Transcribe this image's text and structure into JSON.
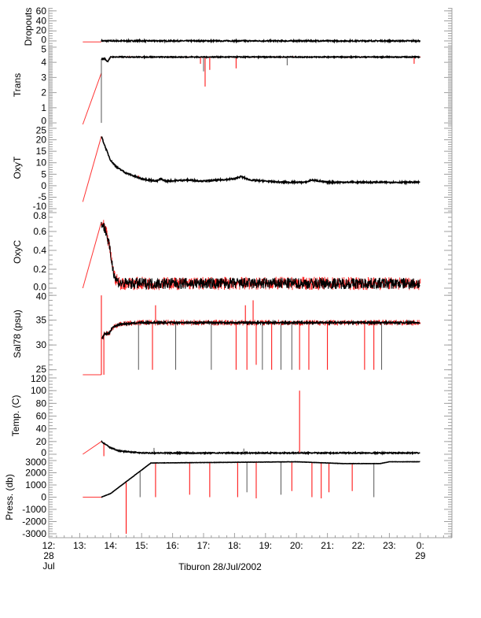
{
  "chart_data": {
    "type": "line",
    "title": "Tiburon 28/Jul/2002",
    "xlabel": "Tiburon 28/Jul/2002",
    "xlim": [
      12.0,
      25.02
    ],
    "x_ticks": [
      {
        "t": 12,
        "lines": [
          "12:",
          "28",
          "Jul"
        ]
      },
      {
        "t": 13,
        "lines": [
          "13:"
        ]
      },
      {
        "t": 14,
        "lines": [
          "14:"
        ]
      },
      {
        "t": 15,
        "lines": [
          "15:"
        ]
      },
      {
        "t": 16,
        "lines": [
          "16:"
        ]
      },
      {
        "t": 17,
        "lines": [
          "17:"
        ]
      },
      {
        "t": 18,
        "lines": [
          "18:"
        ]
      },
      {
        "t": 19,
        "lines": [
          "19:"
        ]
      },
      {
        "t": 20,
        "lines": [
          "20:"
        ]
      },
      {
        "t": 21,
        "lines": [
          "21:"
        ]
      },
      {
        "t": 22,
        "lines": [
          "22:"
        ]
      },
      {
        "t": 23,
        "lines": [
          "23:"
        ]
      },
      {
        "t": 24,
        "lines": [
          "0:",
          "29"
        ]
      }
    ],
    "colors": {
      "good": "#000000",
      "flagged": "#ff0000",
      "axis": "#a0a0a0"
    },
    "panels": [
      {
        "ylabel": "Dropouts",
        "ylim": [
          -9.5,
          66
        ],
        "ticks": [
          0,
          20,
          40,
          60
        ],
        "tick_labels": [
          "0",
          "20",
          "40",
          "60"
        ],
        "minor": 5,
        "red_line": [
          [
            13.1,
            -2
          ],
          [
            13.7,
            -2
          ]
        ],
        "black": [
          [
            13.7,
            0
          ],
          [
            24.0,
            0
          ]
        ],
        "noise": 1.2,
        "red_noise": 0,
        "spikes": []
      },
      {
        "ylabel": "Trans",
        "ylim": [
          -0.1,
          5.1
        ],
        "ticks": [
          0,
          1,
          2,
          3,
          4,
          5
        ],
        "tick_labels": [
          "0",
          "1",
          "2",
          "3",
          "4",
          "5"
        ],
        "minor": 0.1,
        "red_line": [
          [
            13.1,
            -0.1
          ],
          [
            13.7,
            3.3
          ]
        ],
        "black": [
          [
            13.7,
            4.2
          ],
          [
            13.8,
            4.25
          ],
          [
            13.9,
            4.05
          ],
          [
            14.0,
            4.35
          ],
          [
            24.0,
            4.35
          ]
        ],
        "noise": 0.03,
        "red_noise": 0.05,
        "spikes": [
          [
            13.7,
            0.0,
            "k"
          ],
          [
            16.9,
            3.9,
            "r"
          ],
          [
            17.0,
            3.4,
            "k"
          ],
          [
            17.05,
            2.4,
            "r"
          ],
          [
            17.2,
            3.5,
            "r"
          ],
          [
            18.05,
            3.6,
            "r"
          ],
          [
            19.7,
            3.8,
            "k"
          ],
          [
            23.8,
            3.9,
            "r"
          ]
        ]
      },
      {
        "ylabel": "OxyT",
        "ylim": [
          -11,
          26.7
        ],
        "ticks": [
          -10,
          -5,
          0,
          5,
          10,
          15,
          20,
          25
        ],
        "tick_labels": [
          "-10",
          "-5",
          "0",
          "5",
          "10",
          "15",
          "20",
          "25"
        ],
        "minor": 1,
        "red_line": [
          [
            13.1,
            -7
          ],
          [
            13.7,
            21.5
          ]
        ],
        "black": [
          [
            13.7,
            21.5
          ],
          [
            13.85,
            16
          ],
          [
            14.0,
            11
          ],
          [
            14.2,
            8
          ],
          [
            14.5,
            5.5
          ],
          [
            15.0,
            3
          ],
          [
            15.5,
            2
          ],
          [
            15.6,
            3
          ],
          [
            15.8,
            2
          ],
          [
            16.5,
            2.5
          ],
          [
            17.0,
            2
          ],
          [
            17.5,
            2.5
          ],
          [
            18.0,
            3
          ],
          [
            18.2,
            4
          ],
          [
            18.5,
            2.5
          ],
          [
            19.0,
            2
          ],
          [
            19.5,
            1.5
          ],
          [
            20.3,
            1.5
          ],
          [
            20.5,
            2.5
          ],
          [
            21.0,
            1.5
          ],
          [
            24.0,
            1.5
          ]
        ],
        "noise": 0.3,
        "red_noise": 0,
        "spikes": [
          [
            14.9,
            4.5,
            "r"
          ]
        ]
      },
      {
        "ylabel": "OxyC",
        "ylim": [
          -0.05,
          0.817
        ],
        "ticks": [
          0,
          0.2,
          0.4,
          0.6,
          0.8
        ],
        "tick_labels": [
          "0.0",
          "0.2",
          "0.4",
          "0.6",
          "0.8"
        ],
        "minor": 0.05,
        "red_line": [
          [
            13.1,
            0.0
          ],
          [
            13.7,
            0.7
          ]
        ],
        "black": [
          [
            13.7,
            0.7
          ],
          [
            13.85,
            0.6
          ],
          [
            13.95,
            0.45
          ],
          [
            14.05,
            0.25
          ],
          [
            14.15,
            0.1
          ],
          [
            14.3,
            0.05
          ],
          [
            24.0,
            0.05
          ]
        ],
        "noise": 0.06,
        "red_noise": 0.07,
        "spikes": []
      },
      {
        "ylabel": "Sal78 (psu)",
        "ylim": [
          24.0,
          40.5
        ],
        "ticks": [
          25,
          30,
          35,
          40
        ],
        "tick_labels": [
          "25",
          "30",
          "35",
          "40"
        ],
        "minor": 1,
        "red_line": [
          [
            13.1,
            24.0
          ],
          [
            13.7,
            24.0
          ]
        ],
        "black": [
          [
            13.72,
            31.2
          ],
          [
            13.8,
            32.2
          ],
          [
            13.95,
            32.3
          ],
          [
            14.05,
            33.5
          ],
          [
            14.3,
            34.2
          ],
          [
            15.0,
            34.5
          ],
          [
            24.0,
            34.5
          ]
        ],
        "noise": 0.15,
        "red_noise": 0.6,
        "spikes": [
          [
            13.7,
            40,
            "r"
          ],
          [
            13.78,
            24,
            "r"
          ],
          [
            14.9,
            25,
            "k"
          ],
          [
            15.35,
            25,
            "r"
          ],
          [
            15.45,
            38,
            "r"
          ],
          [
            16.1,
            25,
            "k"
          ],
          [
            17.25,
            25,
            "k"
          ],
          [
            18.05,
            25,
            "r"
          ],
          [
            18.35,
            38,
            "r"
          ],
          [
            18.4,
            25,
            "r"
          ],
          [
            18.6,
            39,
            "r"
          ],
          [
            18.7,
            26,
            "r"
          ],
          [
            18.9,
            25,
            "k"
          ],
          [
            19.2,
            25,
            "r"
          ],
          [
            19.5,
            25,
            "k"
          ],
          [
            19.85,
            25,
            "k"
          ],
          [
            20.1,
            25,
            "r"
          ],
          [
            20.4,
            25,
            "r"
          ],
          [
            21.0,
            25,
            "r"
          ],
          [
            22.2,
            25,
            "r"
          ],
          [
            22.5,
            25,
            "r"
          ],
          [
            22.75,
            25,
            "k"
          ],
          [
            23.6,
            35,
            "k"
          ]
        ]
      },
      {
        "ylabel": "Temp. (C)",
        "ylim": [
          -3.7,
          125
        ],
        "ticks": [
          0,
          20,
          40,
          60,
          80,
          100,
          120
        ],
        "tick_labels": [
          "0",
          "20",
          "40",
          "60",
          "80",
          "100",
          "120"
        ],
        "minor": 5,
        "red_line": [
          [
            13.1,
            0
          ],
          [
            13.7,
            20
          ]
        ],
        "black": [
          [
            13.7,
            20
          ],
          [
            14.0,
            10
          ],
          [
            14.3,
            5
          ],
          [
            15.0,
            2
          ],
          [
            24.0,
            2
          ]
        ],
        "noise": 0.8,
        "red_noise": 0,
        "spikes": [
          [
            13.78,
            -3,
            "r"
          ],
          [
            20.1,
            100,
            "r"
          ],
          [
            15.4,
            10,
            "k"
          ],
          [
            18.3,
            9,
            "k"
          ]
        ]
      },
      {
        "ylabel": "Press. (db)",
        "ylim": [
          -3323,
          3323
        ],
        "ticks": [
          -3000,
          -2000,
          -1000,
          0,
          1000,
          2000,
          3000
        ],
        "tick_labels": [
          "-3000",
          "-2000",
          "-1000",
          "0",
          "1000",
          "2000",
          "3000"
        ],
        "minor": 200,
        "red_line": [
          [
            13.1,
            0
          ],
          [
            13.7,
            0
          ]
        ],
        "black": [
          [
            13.7,
            0
          ],
          [
            14.0,
            300
          ],
          [
            15.3,
            2800
          ],
          [
            20.0,
            2900
          ],
          [
            21.5,
            2750
          ],
          [
            22.7,
            2750
          ],
          [
            23.0,
            2900
          ],
          [
            24.0,
            2900
          ]
        ],
        "noise": 10,
        "red_noise": 0,
        "spikes": [
          [
            14.5,
            -3000,
            "r"
          ],
          [
            14.95,
            0,
            "k"
          ],
          [
            15.45,
            0,
            "r"
          ],
          [
            16.55,
            200,
            "r"
          ],
          [
            17.2,
            0,
            "r"
          ],
          [
            18.1,
            0,
            "r"
          ],
          [
            18.4,
            400,
            "k"
          ],
          [
            18.7,
            -100,
            "r"
          ],
          [
            19.5,
            200,
            "k"
          ],
          [
            19.85,
            500,
            "r"
          ],
          [
            20.5,
            0,
            "r"
          ],
          [
            20.8,
            -100,
            "r"
          ],
          [
            21.05,
            400,
            "r"
          ],
          [
            21.8,
            500,
            "r"
          ],
          [
            22.5,
            0,
            "k"
          ]
        ]
      }
    ]
  }
}
